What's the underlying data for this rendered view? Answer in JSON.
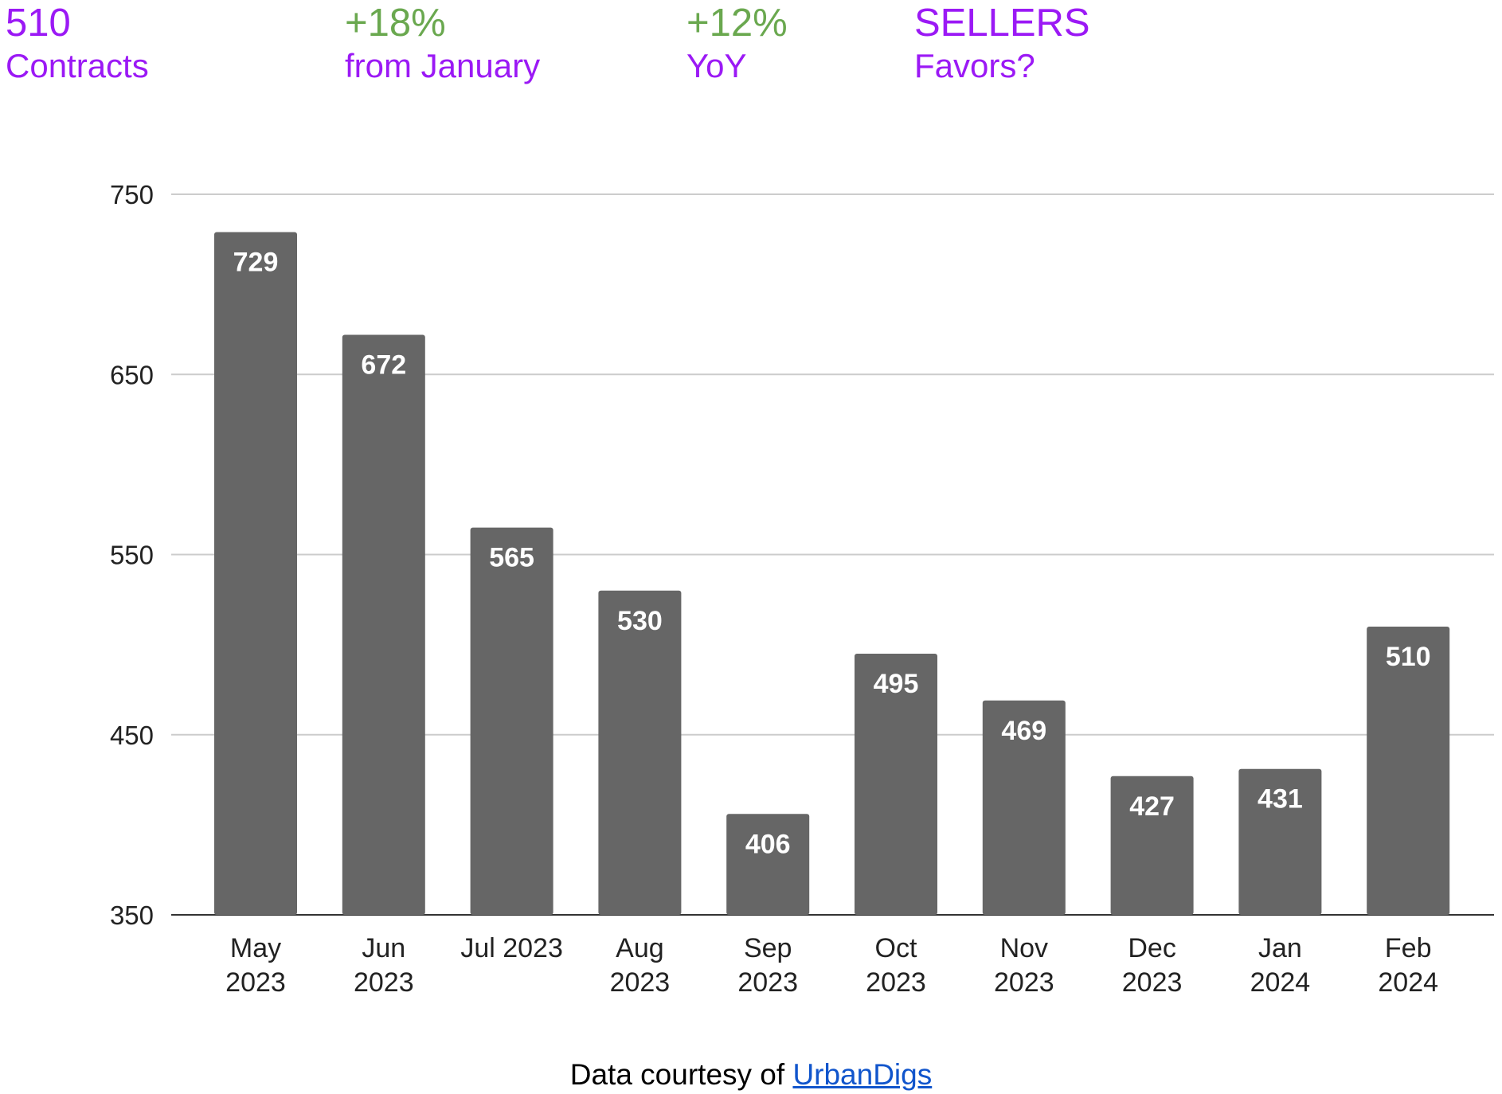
{
  "stats": [
    {
      "value": "510",
      "label": "Contracts",
      "value_color": "#9b19f5",
      "label_color": "#9b19f5"
    },
    {
      "value": "+18%",
      "label": "from January",
      "value_color": "#6aa84f",
      "label_color": "#9b19f5"
    },
    {
      "value": "+12%",
      "label": "YoY",
      "value_color": "#6aa84f",
      "label_color": "#9b19f5"
    },
    {
      "value": "SELLERS",
      "label": "Favors?",
      "value_color": "#9b19f5",
      "label_color": "#9b19f5"
    }
  ],
  "chart_data": {
    "type": "bar",
    "categories": [
      [
        "May",
        "2023"
      ],
      [
        "Jun",
        "2023"
      ],
      [
        "Jul 2023"
      ],
      [
        "Aug",
        "2023"
      ],
      [
        "Sep",
        "2023"
      ],
      [
        "Oct",
        "2023"
      ],
      [
        "Nov",
        "2023"
      ],
      [
        "Dec",
        "2023"
      ],
      [
        "Jan",
        "2024"
      ],
      [
        "Feb",
        "2024"
      ]
    ],
    "values": [
      729,
      672,
      565,
      530,
      406,
      495,
      469,
      427,
      431,
      510
    ],
    "data_labels": [
      "729",
      "672",
      "565",
      "530",
      "406",
      "495",
      "469",
      "427",
      "431",
      "510"
    ],
    "y_ticks": [
      350,
      450,
      550,
      650,
      750
    ],
    "y_tick_labels": [
      "350",
      "450",
      "550",
      "650",
      "750"
    ],
    "ylim": [
      350,
      750
    ],
    "grid": true,
    "bar_color": "#666666",
    "grid_color": "#cccccc",
    "title": "",
    "xlabel": "",
    "ylabel": ""
  },
  "footer": {
    "text": "Data courtesy of",
    "link_text": "UrbanDigs",
    "link_color": "#1155cc"
  }
}
